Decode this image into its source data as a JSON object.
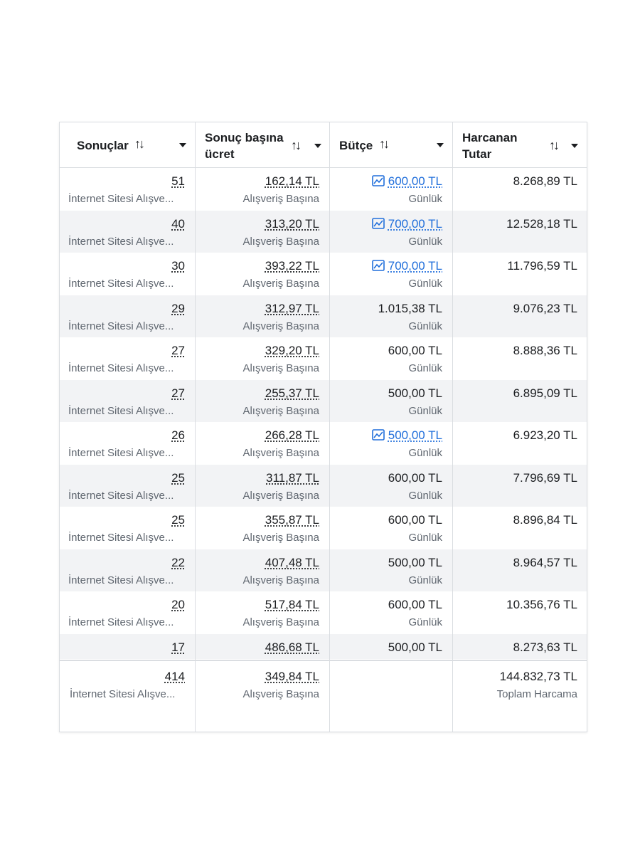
{
  "columns": [
    {
      "label_line1": "Sonuçlar",
      "label_line2": ""
    },
    {
      "label_line1": "Sonuç başına",
      "label_line2": "ücret"
    },
    {
      "label_line1": "Bütçe",
      "label_line2": ""
    },
    {
      "label_line1": "Harcanan",
      "label_line2": "Tutar"
    }
  ],
  "sort_glyph": "↑↓",
  "rows": [
    {
      "results": "51",
      "results_type": "İnternet Sitesi Alışve...",
      "cpr": "162,14 TL",
      "cpr_type": "Alışveriş Başına",
      "budget": "600,00 TL",
      "budget_link": true,
      "budget_period": "Günlük",
      "spent": "8.268,89 TL"
    },
    {
      "results": "40",
      "results_type": "İnternet Sitesi Alışve...",
      "cpr": "313,20 TL",
      "cpr_type": "Alışveriş Başına",
      "budget": "700,00 TL",
      "budget_link": true,
      "budget_period": "Günlük",
      "spent": "12.528,18 TL"
    },
    {
      "results": "30",
      "results_type": "İnternet Sitesi Alışve...",
      "cpr": "393,22 TL",
      "cpr_type": "Alışveriş Başına",
      "budget": "700,00 TL",
      "budget_link": true,
      "budget_period": "Günlük",
      "spent": "11.796,59 TL"
    },
    {
      "results": "29",
      "results_type": "İnternet Sitesi Alışve...",
      "cpr": "312,97 TL",
      "cpr_type": "Alışveriş Başına",
      "budget": "1.015,38 TL",
      "budget_link": false,
      "budget_period": "Günlük",
      "spent": "9.076,23 TL"
    },
    {
      "results": "27",
      "results_type": "İnternet Sitesi Alışve...",
      "cpr": "329,20 TL",
      "cpr_type": "Alışveriş Başına",
      "budget": "600,00 TL",
      "budget_link": false,
      "budget_period": "Günlük",
      "spent": "8.888,36 TL"
    },
    {
      "results": "27",
      "results_type": "İnternet Sitesi Alışve...",
      "cpr": "255,37 TL",
      "cpr_type": "Alışveriş Başına",
      "budget": "500,00 TL",
      "budget_link": false,
      "budget_period": "Günlük",
      "spent": "6.895,09 TL"
    },
    {
      "results": "26",
      "results_type": "İnternet Sitesi Alışve...",
      "cpr": "266,28 TL",
      "cpr_type": "Alışveriş Başına",
      "budget": "500,00 TL",
      "budget_link": true,
      "budget_period": "Günlük",
      "spent": "6.923,20 TL"
    },
    {
      "results": "25",
      "results_type": "İnternet Sitesi Alışve...",
      "cpr": "311,87 TL",
      "cpr_type": "Alışveriş Başına",
      "budget": "600,00 TL",
      "budget_link": false,
      "budget_period": "Günlük",
      "spent": "7.796,69 TL"
    },
    {
      "results": "25",
      "results_type": "İnternet Sitesi Alışve...",
      "cpr": "355,87 TL",
      "cpr_type": "Alışveriş Başına",
      "budget": "600,00 TL",
      "budget_link": false,
      "budget_period": "Günlük",
      "spent": "8.896,84 TL"
    },
    {
      "results": "22",
      "results_type": "İnternet Sitesi Alışve...",
      "cpr": "407,48 TL",
      "cpr_type": "Alışveriş Başına",
      "budget": "500,00 TL",
      "budget_link": false,
      "budget_period": "Günlük",
      "spent": "8.964,57 TL"
    },
    {
      "results": "20",
      "results_type": "İnternet Sitesi Alışve...",
      "cpr": "517,84 TL",
      "cpr_type": "Alışveriş Başına",
      "budget": "600,00 TL",
      "budget_link": false,
      "budget_period": "Günlük",
      "spent": "10.356,76 TL"
    },
    {
      "results": "17",
      "results_type": "",
      "cpr": "486,68 TL",
      "cpr_type": "",
      "budget": "500,00 TL",
      "budget_link": false,
      "budget_period": "",
      "spent": "8.273,63 TL"
    }
  ],
  "totals": {
    "results": "414",
    "results_type": "İnternet Sitesi Alışve...",
    "cpr": "349,84 TL",
    "cpr_type": "Alışveriş Başına",
    "spent": "144.832,73 TL",
    "spent_label": "Toplam Harcama"
  },
  "colors": {
    "link": "#216fdb",
    "alt_row": "#f2f3f5",
    "border": "#dadde1",
    "muted": "#606770"
  }
}
